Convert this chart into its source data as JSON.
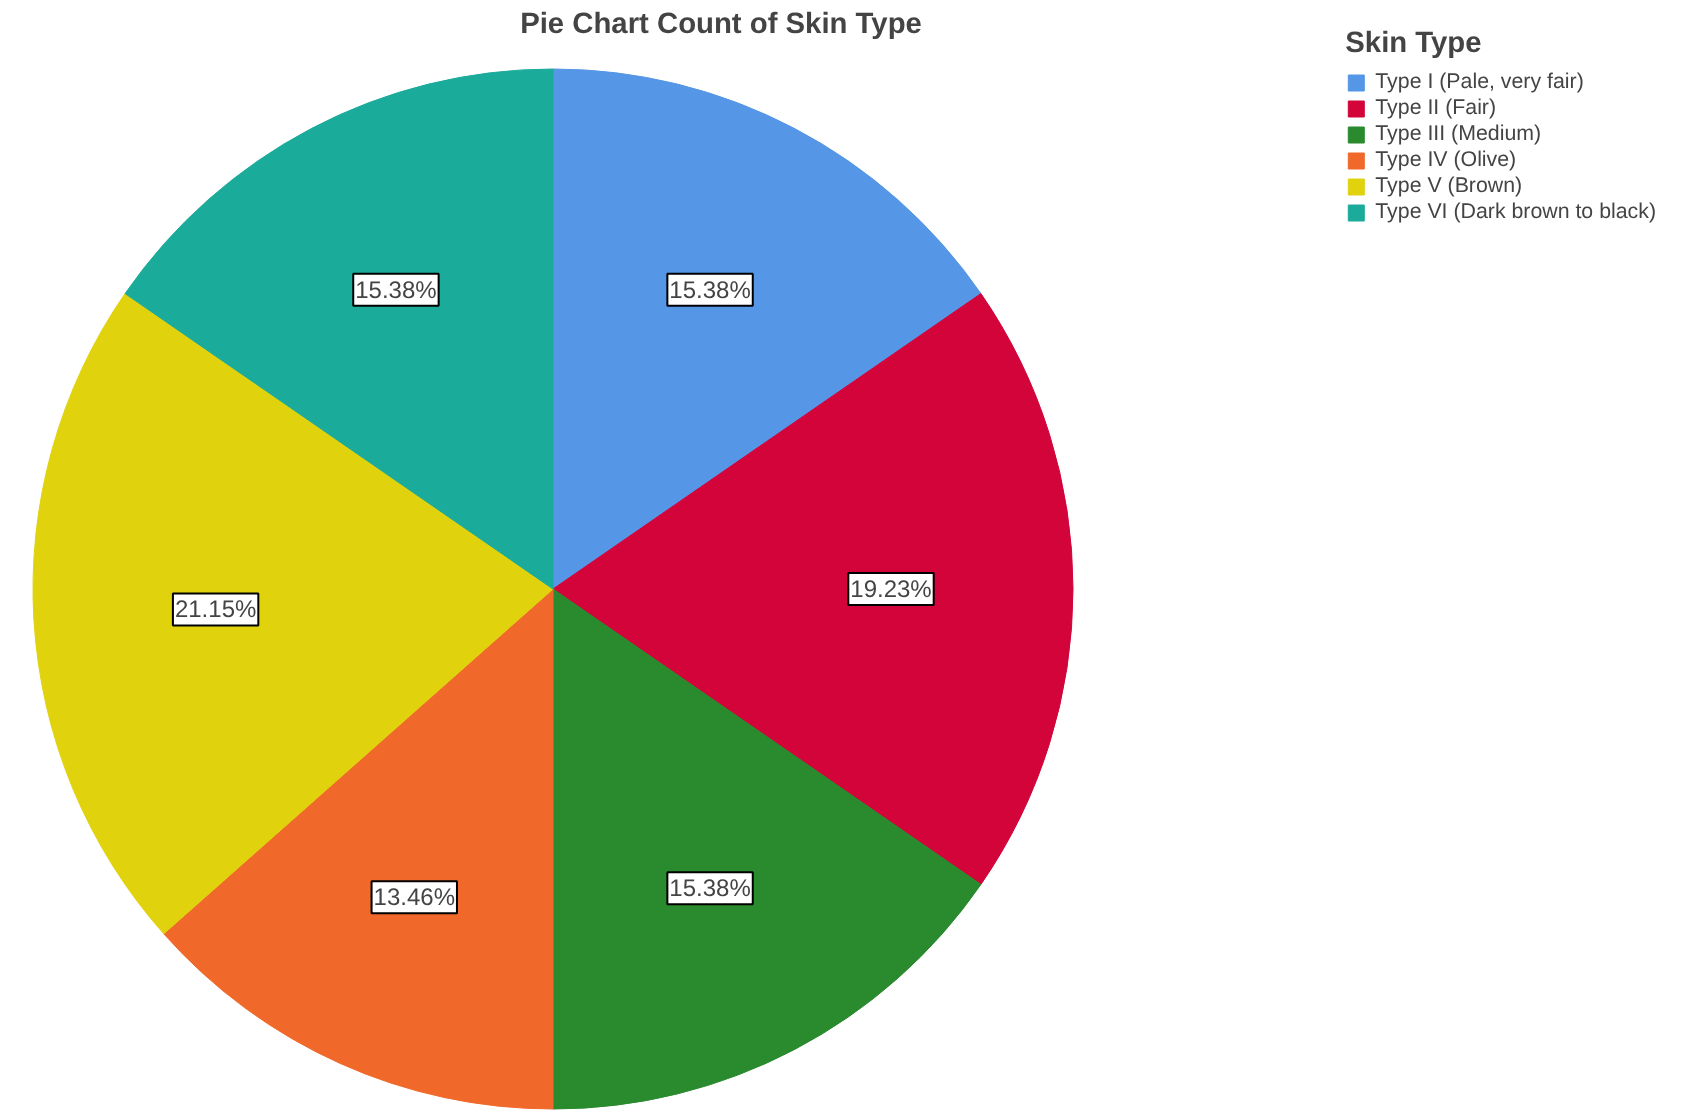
{
  "chart_data": {
    "type": "pie",
    "title": "Pie Chart Count of Skin Type",
    "legend_title": "Skin Type",
    "categories": [
      "Type I (Pale, very fair)",
      "Type II (Fair)",
      "Type III (Medium)",
      "Type IV (Olive)",
      "Type V (Brown)",
      "Type VI (Dark brown to black)"
    ],
    "values": [
      15.38,
      19.23,
      15.38,
      13.46,
      21.15,
      15.38
    ],
    "colors": [
      "#5596e6",
      "#d2043a",
      "#2a8a2e",
      "#f0692a",
      "#e1d20e",
      "#1aab9b"
    ],
    "value_labels": [
      "15.38%",
      "19.23%",
      "15.38%",
      "13.46%",
      "21.15%",
      "15.38%"
    ],
    "legend": "top right"
  }
}
